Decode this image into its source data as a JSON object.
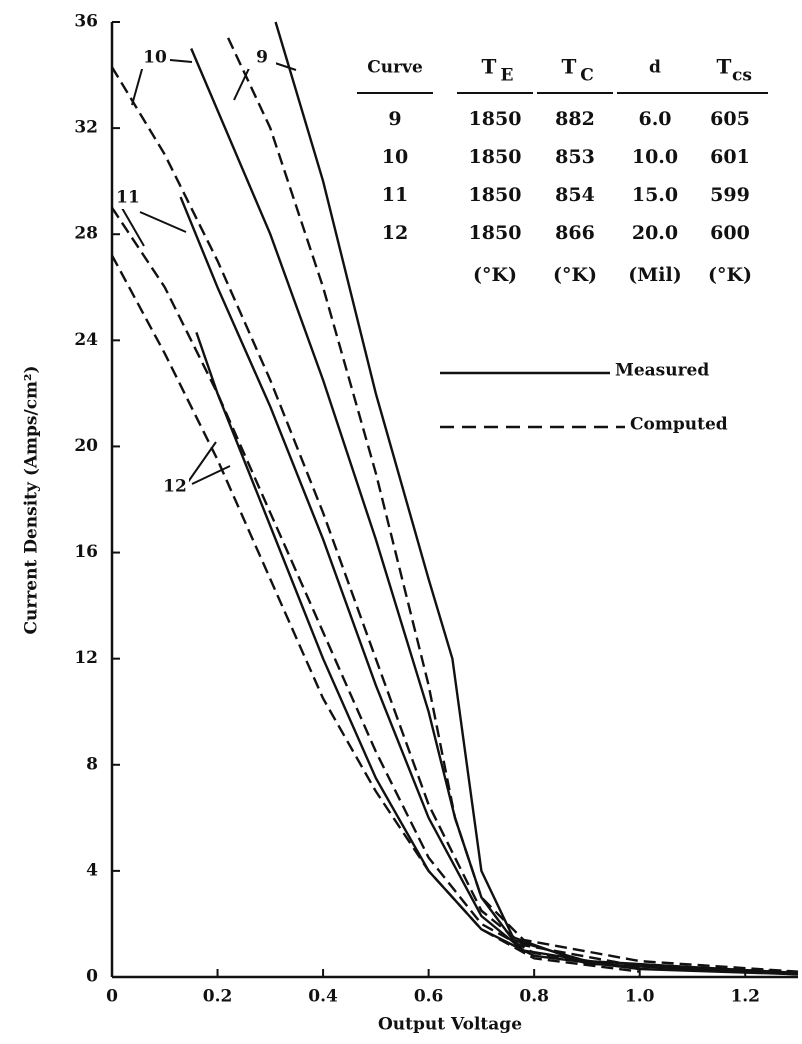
{
  "chart_data": {
    "type": "line",
    "y_label": "Current Density (Amps/cm²)",
    "x_label": "Output Voltage",
    "xlim": [
      0,
      1.3
    ],
    "ylim": [
      0,
      36
    ],
    "xticks": [
      0,
      0.2,
      0.4,
      0.6,
      0.8,
      {
        "value": 1,
        "label": "1.0"
      },
      1.2
    ],
    "yticks": [
      0,
      4,
      8,
      12,
      16,
      20,
      24,
      28,
      32,
      36
    ],
    "series": [
      {
        "style": "solid",
        "color": "#111111",
        "x": [
          0.31,
          0.4,
          0.5,
          0.6,
          0.645,
          0.7,
          0.76,
          0.9,
          1.3
        ],
        "values": [
          36,
          30,
          22,
          15,
          12,
          4,
          1.5,
          0.5,
          0.1
        ]
      },
      {
        "style": "dashed",
        "color": "#111111",
        "x": [
          0.22,
          0.3,
          0.4,
          0.5,
          0.6,
          0.65,
          0.7,
          0.78,
          1.0,
          1.3
        ],
        "values": [
          35.4,
          32,
          26,
          19,
          11,
          6,
          3,
          1.4,
          0.6,
          0.2
        ]
      },
      {
        "style": "solid",
        "color": "#111111",
        "x": [
          0.15,
          0.3,
          0.4,
          0.5,
          0.6,
          0.65,
          0.7,
          0.76,
          0.9,
          1.3
        ],
        "values": [
          35,
          28,
          22.5,
          16.5,
          10,
          6,
          3,
          1.4,
          0.6,
          0.15
        ]
      },
      {
        "style": "dashed",
        "color": "#111111",
        "x": [
          0,
          0.1,
          0.2,
          0.3,
          0.4,
          0.5,
          0.6,
          0.7,
          0.78,
          1.0,
          1.3
        ],
        "values": [
          34.3,
          31,
          27,
          22.5,
          17.5,
          12,
          6.5,
          2.5,
          1.2,
          0.4,
          0.2
        ]
      },
      {
        "style": "solid",
        "color": "#111111",
        "x": [
          0.13,
          0.2,
          0.3,
          0.4,
          0.5,
          0.6,
          0.7,
          0.78,
          1.0,
          1.3
        ],
        "values": [
          29.4,
          26,
          21.5,
          16.5,
          11,
          6,
          2.3,
          1,
          0.3,
          0.1
        ]
      },
      {
        "style": "dashed",
        "color": "#111111",
        "x": [
          0,
          0.1,
          0.2,
          0.3,
          0.4,
          0.5,
          0.6,
          0.7,
          0.8,
          1.0
        ],
        "values": [
          29,
          26,
          22,
          17.5,
          13,
          8.5,
          4.5,
          2,
          0.9,
          0.3
        ]
      },
      {
        "style": "solid",
        "color": "#111111",
        "x": [
          0.16,
          0.2,
          0.3,
          0.4,
          0.5,
          0.6,
          0.7,
          0.8,
          1.0
        ],
        "values": [
          24.3,
          22,
          17,
          12,
          7.5,
          4,
          1.8,
          0.8,
          0.3
        ]
      },
      {
        "style": "dashed",
        "color": "#111111",
        "x": [
          0,
          0.1,
          0.2,
          0.3,
          0.4,
          0.5,
          0.6,
          0.7,
          0.8,
          1.0
        ],
        "values": [
          27.2,
          23.5,
          19.5,
          15,
          10.5,
          7,
          4,
          1.8,
          0.7,
          0.2
        ]
      }
    ],
    "annotations": [
      "9",
      "10",
      "11",
      "12"
    ],
    "legend": [
      {
        "label": "Measured",
        "style": "solid"
      },
      {
        "label": "Computed",
        "style": "dashed"
      }
    ],
    "table": {
      "header": [
        {
          "text": "Curve"
        },
        {
          "text": "T",
          "sub": "E"
        },
        {
          "text": "T",
          "sub": "C"
        },
        {
          "text": "d"
        },
        {
          "text": "T",
          "sub": "cs"
        }
      ],
      "rows": [
        [
          "9",
          "1850",
          "882",
          "6.0",
          "605"
        ],
        [
          "10",
          "1850",
          "853",
          "10.0",
          "601"
        ],
        [
          "11",
          "1850",
          "854",
          "15.0",
          "599"
        ],
        [
          "12",
          "1850",
          "866",
          "20.0",
          "600"
        ]
      ],
      "units": [
        "(°K)",
        "(°K)",
        "(Mil)",
        "(°K)"
      ]
    }
  }
}
